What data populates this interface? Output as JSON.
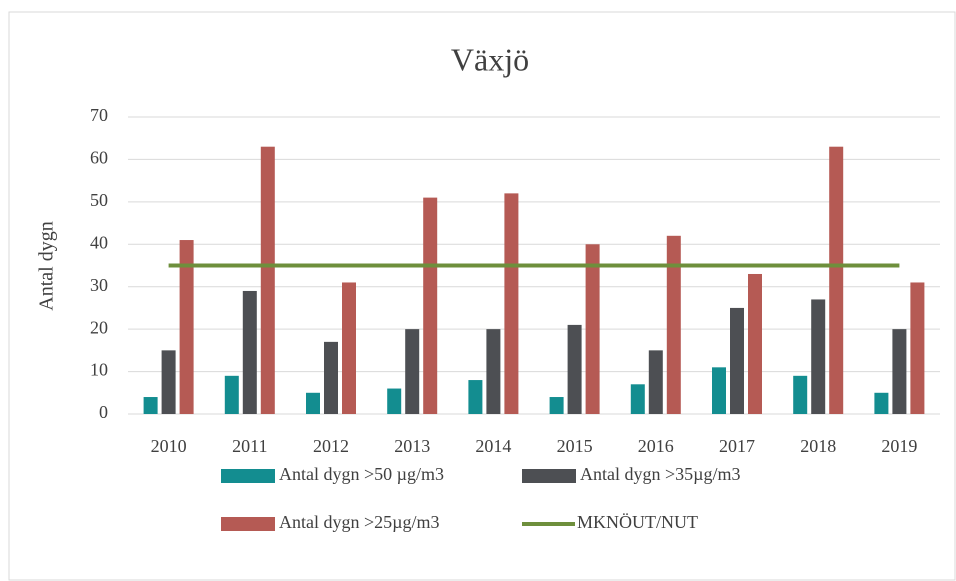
{
  "chart_data": {
    "type": "bar",
    "title": "Växjö",
    "y_label": "Antal dygn",
    "categories": [
      "2010",
      "2011",
      "2012",
      "2013",
      "2014",
      "2015",
      "2016",
      "2017",
      "2018",
      "2019"
    ],
    "series": [
      {
        "name": "Antal dygn >50 µg/m3",
        "color": "#138d90",
        "type": "bar",
        "values": [
          4,
          9,
          5,
          6,
          8,
          4,
          7,
          11,
          9,
          5
        ]
      },
      {
        "name": "Antal dygn >35µg/m3",
        "color": "#4d4f53",
        "type": "bar",
        "values": [
          15,
          29,
          17,
          20,
          20,
          21,
          15,
          25,
          27,
          20
        ]
      },
      {
        "name": "Antal dygn >25µg/m3",
        "color": "#b55a54",
        "type": "bar",
        "values": [
          41,
          63,
          31,
          51,
          52,
          40,
          42,
          33,
          63,
          31
        ]
      },
      {
        "name": "MKNÖUT/NUT",
        "color": "#6e8f3c",
        "type": "line",
        "values": [
          35,
          35,
          35,
          35,
          35,
          35,
          35,
          35,
          35,
          35
        ]
      }
    ],
    "ylim": [
      0,
      70
    ],
    "yticks": [
      0,
      10,
      20,
      30,
      40,
      50,
      60,
      70
    ],
    "grid": true
  }
}
